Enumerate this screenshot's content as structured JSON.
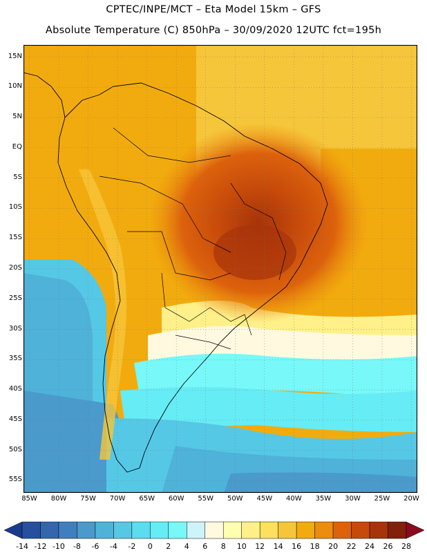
{
  "header": {
    "line1": "CPTEC/INPE/MCT –  Eta Model 15km – GFS",
    "line2": "Absolute Temperature (C) 850hPa – 30/09/2020 12UTC fct=195h"
  },
  "map": {
    "lat_labels": [
      "15N",
      "10N",
      "5N",
      "EQ",
      "5S",
      "10S",
      "15S",
      "20S",
      "25S",
      "30S",
      "35S",
      "40S",
      "45S",
      "50S",
      "55S"
    ],
    "lon_labels": [
      "85W",
      "80W",
      "75W",
      "70W",
      "65W",
      "60W",
      "55W",
      "50W",
      "45W",
      "40W",
      "35W",
      "30W",
      "25W",
      "20W"
    ],
    "lat_values": [
      15,
      10,
      5,
      0,
      -5,
      -10,
      -15,
      -20,
      -25,
      -30,
      -35,
      -40,
      -45,
      -50,
      -55
    ],
    "lon_values": [
      -85,
      -80,
      -75,
      -70,
      -65,
      -60,
      -55,
      -50,
      -45,
      -40,
      -35,
      -30,
      -25,
      -20
    ],
    "extent": {
      "lon_min": -86,
      "lon_max": -19,
      "lat_min": -57,
      "lat_max": 17
    },
    "grid": true
  },
  "colorbar": {
    "labels": [
      "-14",
      "-12",
      "-10",
      "-8",
      "-6",
      "-4",
      "-2",
      "0",
      "2",
      "4",
      "6",
      "8",
      "10",
      "12",
      "14",
      "16",
      "18",
      "20",
      "22",
      "24",
      "26",
      "28"
    ],
    "colors": [
      "#1a3c8c",
      "#26509e",
      "#3366ad",
      "#3f7fbf",
      "#4a9acc",
      "#4fb2d9",
      "#55c8e6",
      "#5cdcee",
      "#66ecf5",
      "#78f8f8",
      "#cdf3fb",
      "#fff9e0",
      "#ffffb0",
      "#fff08a",
      "#fde05e",
      "#f6c63a",
      "#f2ab0e",
      "#eb8d0e",
      "#dd620c",
      "#c64a0a",
      "#a6330a",
      "#82200a",
      "#8a0a1e"
    ]
  }
}
